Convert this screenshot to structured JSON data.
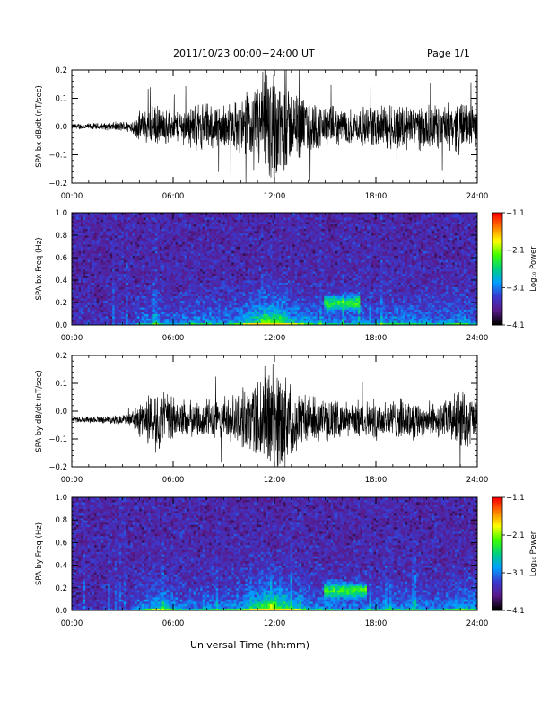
{
  "header": {
    "title": "2011/10/23  00:00−24:00 UT",
    "page": "Page 1/1"
  },
  "footer": {
    "xlabel": "Universal Time (hh:mm)"
  },
  "colors": {
    "trace": "#000000",
    "background": "#ffffff",
    "spectrogram_low": "#000000",
    "spectrogram_mid": "#5a3fbf",
    "spectrogram_high": "#ff0000"
  },
  "chart_data": [
    {
      "type": "line",
      "ylabel": "SPA bx dB/dt (nT/sec)",
      "ylim": [
        -0.2,
        0.2
      ],
      "yticks": [
        -0.2,
        -0.1,
        0.0,
        0.1,
        0.2
      ],
      "ytick_labels": [
        "−0.2",
        "−0.1",
        "0.0",
        "0.1",
        "0.2"
      ],
      "xlim": [
        0,
        24
      ],
      "xticks": [
        0,
        6,
        12,
        18,
        24
      ],
      "xtick_labels": [
        "00:00",
        "06:00",
        "12:00",
        "18:00",
        "24:00"
      ],
      "series": [
        {
          "hours": [
            0,
            2,
            3.5,
            4,
            5,
            6,
            7,
            8,
            9,
            10,
            11,
            11.5,
            12,
            12.5,
            13,
            14,
            15,
            16,
            17,
            18,
            19,
            20,
            21,
            22,
            23,
            24
          ],
          "amplitude": [
            0.01,
            0.012,
            0.02,
            0.05,
            0.07,
            0.05,
            0.07,
            0.08,
            0.07,
            0.09,
            0.15,
            0.2,
            0.2,
            0.17,
            0.12,
            0.09,
            0.07,
            0.06,
            0.06,
            0.07,
            0.08,
            0.08,
            0.07,
            0.07,
            0.09,
            0.06
          ],
          "baseline": 0.0
        }
      ]
    },
    {
      "type": "heatmap",
      "ylabel": "SPA bx Freq (Hz)",
      "ylim": [
        0.0,
        1.0
      ],
      "yticks": [
        0.0,
        0.2,
        0.4,
        0.6,
        0.8,
        1.0
      ],
      "ytick_labels": [
        "0.0",
        "0.2",
        "0.4",
        "0.6",
        "0.8",
        "1.0"
      ],
      "xlim": [
        0,
        24
      ],
      "xticks": [
        0,
        6,
        12,
        18,
        24
      ],
      "xtick_labels": [
        "00:00",
        "06:00",
        "12:00",
        "18:00",
        "24:00"
      ],
      "colorbar": {
        "label": "Log₁₀ Power",
        "range": [
          -4.1,
          -1.1
        ],
        "ticks": [
          -1.1,
          -2.1,
          -3.1,
          -4.1
        ],
        "tick_labels": [
          "−1.1",
          "−2.1",
          "−3.1",
          "−4.1"
        ],
        "colors": [
          "#000000",
          "#5a1a8a",
          "#3a3ad0",
          "#00a0ff",
          "#00d080",
          "#40ff00",
          "#ffff00",
          "#ff8000",
          "#ff0000"
        ]
      },
      "band_peak_freq": 0.2,
      "band_window_hours": [
        15,
        17
      ]
    },
    {
      "type": "line",
      "ylabel": "SPA by dB/dt (nT/sec)",
      "ylim": [
        -0.2,
        0.2
      ],
      "yticks": [
        -0.2,
        -0.1,
        0.0,
        0.1,
        0.2
      ],
      "ytick_labels": [
        "−0.2",
        "−0.1",
        "0.0",
        "0.1",
        "0.2"
      ],
      "xlim": [
        0,
        24
      ],
      "xticks": [
        0,
        6,
        12,
        18,
        24
      ],
      "xtick_labels": [
        "00:00",
        "06:00",
        "12:00",
        "18:00",
        "24:00"
      ],
      "series": [
        {
          "hours": [
            0,
            2,
            3.5,
            4,
            5,
            6,
            7,
            8,
            9,
            10,
            11,
            11.5,
            12,
            12.5,
            13,
            14,
            15,
            16,
            17,
            18,
            19,
            20,
            21,
            22,
            23,
            24
          ],
          "amplitude": [
            0.01,
            0.012,
            0.02,
            0.06,
            0.11,
            0.08,
            0.06,
            0.07,
            0.07,
            0.09,
            0.15,
            0.19,
            0.2,
            0.17,
            0.12,
            0.08,
            0.07,
            0.06,
            0.06,
            0.07,
            0.07,
            0.07,
            0.06,
            0.06,
            0.1,
            0.08
          ],
          "baseline": -0.03
        }
      ]
    },
    {
      "type": "heatmap",
      "ylabel": "SPA by Freq (Hz)",
      "ylim": [
        0.0,
        1.0
      ],
      "yticks": [
        0.0,
        0.2,
        0.4,
        0.6,
        0.8,
        1.0
      ],
      "ytick_labels": [
        "0.0",
        "0.2",
        "0.4",
        "0.6",
        "0.8",
        "1.0"
      ],
      "xlim": [
        0,
        24
      ],
      "xticks": [
        0,
        6,
        12,
        18,
        24
      ],
      "xtick_labels": [
        "00:00",
        "06:00",
        "12:00",
        "18:00",
        "24:00"
      ],
      "colorbar": {
        "label": "Log₁₀ Power",
        "range": [
          -4.1,
          -1.1
        ],
        "ticks": [
          -1.1,
          -2.1,
          -3.1,
          -4.1
        ],
        "tick_labels": [
          "−1.1",
          "−2.1",
          "−3.1",
          "−4.1"
        ],
        "colors": [
          "#000000",
          "#5a1a8a",
          "#3a3ad0",
          "#00a0ff",
          "#00d080",
          "#40ff00",
          "#ffff00",
          "#ff8000",
          "#ff0000"
        ]
      },
      "band_peak_freq": 0.18,
      "band_window_hours": [
        15,
        17.5
      ]
    }
  ]
}
